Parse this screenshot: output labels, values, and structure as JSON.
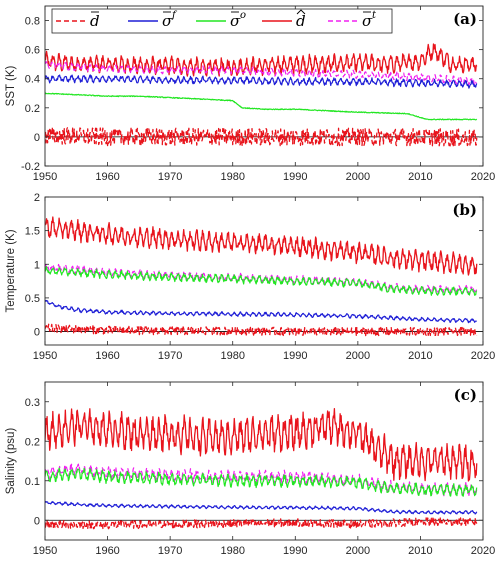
{
  "colors": {
    "d_bar": "#e8141c",
    "sigma_f": "#1f1fd6",
    "sigma_o": "#22e622",
    "d_hat": "#e8141c",
    "sigma_t": "#f020f0",
    "axis": "#262626",
    "zero_line": "#000000"
  },
  "legend": {
    "placement": "top, inside panel (a)",
    "entries": [
      {
        "key": "d_bar",
        "label": "d",
        "accent": "bar",
        "sup": "",
        "style": "dashed"
      },
      {
        "key": "sigma_f",
        "label": "σ",
        "accent": "bar",
        "sup": "f",
        "style": "solid"
      },
      {
        "key": "sigma_o",
        "label": "σ",
        "accent": "bar",
        "sup": "o",
        "style": "solid"
      },
      {
        "key": "d_hat",
        "label": "d",
        "accent": "hat",
        "sup": "",
        "style": "solid"
      },
      {
        "key": "sigma_t",
        "label": "σ",
        "accent": "bar",
        "sup": "t",
        "style": "dashed"
      }
    ]
  },
  "chart_data": [
    {
      "type": "line",
      "panel_label": "(a)",
      "ylabel": "SST (K)",
      "xlim": [
        1950,
        2020
      ],
      "ylim": [
        -0.2,
        0.9
      ],
      "xticks": [
        1950,
        1960,
        1970,
        1980,
        1990,
        2000,
        2010,
        2020
      ],
      "yticks": [
        -0.2,
        0,
        0.2,
        0.4,
        0.6,
        0.8
      ],
      "ytick_labels": [
        "-0.2",
        "0",
        "0.2",
        "0.4",
        "0.6",
        "0.8"
      ],
      "zero_line": true,
      "series": [
        {
          "key": "d_hat",
          "x": [
            1950,
            1955,
            1960,
            1965,
            1970,
            1975,
            1980,
            1985,
            1990,
            1995,
            2000,
            2005,
            2010,
            2012,
            2015,
            2019
          ],
          "y": [
            0.52,
            0.5,
            0.5,
            0.49,
            0.49,
            0.48,
            0.48,
            0.49,
            0.5,
            0.5,
            0.51,
            0.5,
            0.52,
            0.6,
            0.5,
            0.5
          ],
          "amplitude": 0.06
        },
        {
          "key": "sigma_t",
          "x": [
            1950,
            1955,
            1960,
            1970,
            1980,
            1990,
            2000,
            2010,
            2019
          ],
          "y": [
            0.5,
            0.48,
            0.47,
            0.46,
            0.46,
            0.44,
            0.43,
            0.41,
            0.38
          ],
          "amplitude": 0.025
        },
        {
          "key": "sigma_f",
          "x": [
            1950,
            1960,
            1970,
            1980,
            1990,
            2000,
            2010,
            2019
          ],
          "y": [
            0.4,
            0.4,
            0.39,
            0.39,
            0.38,
            0.38,
            0.37,
            0.36
          ],
          "amplitude": 0.025
        },
        {
          "key": "sigma_o",
          "x": [
            1950,
            1955,
            1960,
            1965,
            1970,
            1975,
            1980,
            1981.5,
            1985,
            1990,
            1995,
            2000,
            2008,
            2011,
            2019
          ],
          "y": [
            0.3,
            0.29,
            0.28,
            0.28,
            0.27,
            0.26,
            0.25,
            0.2,
            0.19,
            0.19,
            0.18,
            0.17,
            0.16,
            0.12,
            0.12
          ],
          "amplitude": 0.006
        },
        {
          "key": "d_bar",
          "x": [
            1950,
            1960,
            1970,
            1980,
            1990,
            2000,
            2010,
            2019
          ],
          "y": [
            0.01,
            0.0,
            0.0,
            0.0,
            0.0,
            0.0,
            0.0,
            -0.01
          ],
          "amplitude": 0.06
        }
      ]
    },
    {
      "type": "line",
      "panel_label": "(b)",
      "ylabel": "Temperature (K)",
      "xlim": [
        1950,
        2020
      ],
      "ylim": [
        -0.2,
        2.0
      ],
      "xticks": [
        1950,
        1960,
        1970,
        1980,
        1990,
        2000,
        2010,
        2020
      ],
      "yticks": [
        0,
        0.5,
        1,
        1.5,
        2
      ],
      "ytick_labels": [
        "0",
        "0.5",
        "1",
        "1.5",
        "2"
      ],
      "zero_line": true,
      "series": [
        {
          "key": "d_hat",
          "x": [
            1950,
            1955,
            1960,
            1965,
            1970,
            1975,
            1980,
            1985,
            1990,
            1995,
            2000,
            2005,
            2010,
            2015,
            2019
          ],
          "y": [
            1.55,
            1.5,
            1.45,
            1.4,
            1.38,
            1.35,
            1.32,
            1.3,
            1.27,
            1.22,
            1.18,
            1.1,
            1.05,
            1.02,
            0.98
          ],
          "amplitude": 0.15
        },
        {
          "key": "sigma_t",
          "x": [
            1950,
            1955,
            1960,
            1970,
            1980,
            1990,
            2000,
            2005,
            2010,
            2019
          ],
          "y": [
            0.95,
            0.92,
            0.88,
            0.84,
            0.8,
            0.77,
            0.74,
            0.66,
            0.63,
            0.62
          ],
          "amplitude": 0.06
        },
        {
          "key": "sigma_o",
          "x": [
            1950,
            1955,
            1960,
            1970,
            1980,
            1990,
            2000,
            2005,
            2010,
            2019
          ],
          "y": [
            0.9,
            0.88,
            0.85,
            0.81,
            0.78,
            0.75,
            0.72,
            0.64,
            0.61,
            0.6
          ],
          "amplitude": 0.06
        },
        {
          "key": "sigma_f",
          "x": [
            1950,
            1952,
            1955,
            1960,
            1970,
            1980,
            1990,
            2000,
            2010,
            2019
          ],
          "y": [
            0.45,
            0.38,
            0.32,
            0.29,
            0.27,
            0.26,
            0.25,
            0.23,
            0.18,
            0.16
          ],
          "amplitude": 0.03
        },
        {
          "key": "d_bar",
          "x": [
            1950,
            1960,
            1970,
            1980,
            1990,
            2000,
            2010,
            2019
          ],
          "y": [
            0.05,
            0.02,
            0.01,
            0.01,
            0.0,
            0.0,
            0.0,
            0.0
          ],
          "amplitude": 0.06
        }
      ]
    },
    {
      "type": "line",
      "panel_label": "(c)",
      "ylabel": "Salinity (psu)",
      "xlim": [
        1950,
        2020
      ],
      "ylim": [
        -0.05,
        0.35
      ],
      "xticks": [
        1950,
        1960,
        1970,
        1980,
        1990,
        2000,
        2010,
        2020
      ],
      "yticks": [
        0,
        0.1,
        0.2,
        0.3
      ],
      "ytick_labels": [
        "0",
        "0.1",
        "0.2",
        "0.3"
      ],
      "zero_line": true,
      "series": [
        {
          "key": "d_hat",
          "x": [
            1950,
            1955,
            1960,
            1965,
            1970,
            1975,
            1980,
            1985,
            1990,
            1995,
            2000,
            2003,
            2006,
            2010,
            2015,
            2019
          ],
          "y": [
            0.22,
            0.24,
            0.23,
            0.22,
            0.22,
            0.21,
            0.21,
            0.22,
            0.22,
            0.24,
            0.22,
            0.18,
            0.15,
            0.15,
            0.15,
            0.145
          ],
          "amplitude": 0.045
        },
        {
          "key": "sigma_t",
          "x": [
            1950,
            1955,
            1960,
            1970,
            1980,
            1990,
            2000,
            2005,
            2010,
            2019
          ],
          "y": [
            0.12,
            0.13,
            0.12,
            0.115,
            0.11,
            0.11,
            0.1,
            0.085,
            0.08,
            0.078
          ],
          "amplitude": 0.015
        },
        {
          "key": "sigma_o",
          "x": [
            1950,
            1955,
            1960,
            1970,
            1980,
            1990,
            2000,
            2005,
            2010,
            2019
          ],
          "y": [
            0.11,
            0.12,
            0.11,
            0.105,
            0.1,
            0.1,
            0.095,
            0.082,
            0.078,
            0.076
          ],
          "amplitude": 0.015
        },
        {
          "key": "sigma_f",
          "x": [
            1950,
            1955,
            1960,
            1970,
            1980,
            1990,
            2000,
            2005,
            2010,
            2019
          ],
          "y": [
            0.045,
            0.04,
            0.037,
            0.035,
            0.033,
            0.032,
            0.03,
            0.022,
            0.02,
            0.02
          ],
          "amplitude": 0.004
        },
        {
          "key": "d_bar",
          "x": [
            1950,
            1960,
            1970,
            1980,
            1990,
            2000,
            2010,
            2019
          ],
          "y": [
            -0.01,
            -0.012,
            -0.01,
            -0.008,
            -0.006,
            -0.01,
            -0.004,
            -0.004
          ],
          "amplitude": 0.01
        }
      ]
    }
  ]
}
